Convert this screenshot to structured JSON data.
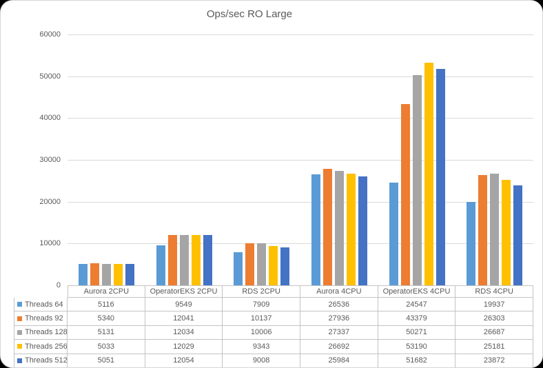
{
  "chart_data": {
    "type": "bar",
    "title": "Ops/sec RO Large",
    "categories": [
      "Aurora 2CPU",
      "OperatorEKS 2CPU",
      "RDS 2CPU",
      "Aurora 4CPU",
      "OperatorEKS 4CPU",
      "RDS 4CPU"
    ],
    "series": [
      {
        "name": "Threads 64",
        "color": "#5B9BD5",
        "values": [
          5116,
          9549,
          7909,
          26536,
          24547,
          19937
        ]
      },
      {
        "name": "Threads 92",
        "color": "#ED7D31",
        "values": [
          5340,
          12041,
          10137,
          27936,
          43379,
          26303
        ]
      },
      {
        "name": "Threads 128",
        "color": "#A5A5A5",
        "values": [
          5131,
          12034,
          10006,
          27337,
          50271,
          26687
        ]
      },
      {
        "name": "Threads 256",
        "color": "#FFC000",
        "values": [
          5033,
          12029,
          9343,
          26692,
          53190,
          25181
        ]
      },
      {
        "name": "Threads 512",
        "color": "#4472C4",
        "values": [
          5051,
          12054,
          9008,
          25984,
          51682,
          23872
        ]
      }
    ],
    "ylim": [
      0,
      60000
    ],
    "yticks": [
      0,
      10000,
      20000,
      30000,
      40000,
      50000,
      60000
    ],
    "grid": "horizontal",
    "legend_position": "data-table-left",
    "text_color": "#595959",
    "gridline_color": "#D9D9D9",
    "table_border_color": "#C3C3C3"
  }
}
